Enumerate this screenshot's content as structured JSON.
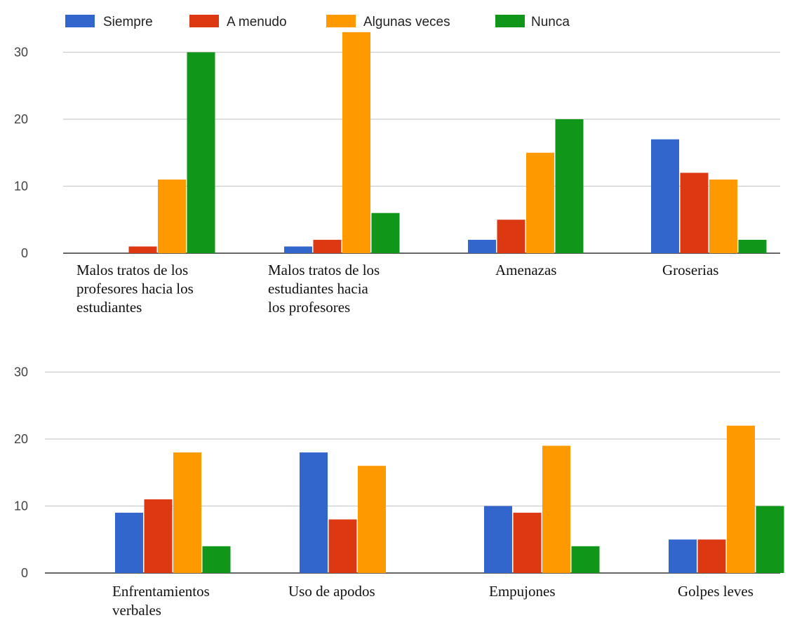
{
  "legend": {
    "items": [
      {
        "label": "Siempre",
        "color": "#3366cc"
      },
      {
        "label": "A menudo",
        "color": "#dc3912"
      },
      {
        "label": "Algunas veces",
        "color": "#ff9900"
      },
      {
        "label": "Nunca",
        "color": "#109618"
      }
    ]
  },
  "chart_data": [
    {
      "type": "bar",
      "legend_position": "top-left",
      "grid": true,
      "ylim": [
        0,
        33
      ],
      "yticks": [
        "0",
        "10",
        "20",
        "30"
      ],
      "categories": [
        "Malos tratos de los profesores hacia los estudiantes",
        "Malos tratos de los estudiantes hacia los profesores",
        "Amenazas",
        "Groserias"
      ],
      "category_lines": [
        [
          "Malos tratos de los",
          "profesores hacia los",
          "estudiantes"
        ],
        [
          "Malos tratos de los",
          "estudiantes hacia",
          "los profesores"
        ],
        [
          "Amenazas"
        ],
        [
          "Groserias"
        ]
      ],
      "series": [
        {
          "name": "Siempre",
          "color": "#3366cc",
          "values": [
            0,
            1,
            2,
            17
          ]
        },
        {
          "name": "A menudo",
          "color": "#dc3912",
          "values": [
            1,
            2,
            5,
            12
          ]
        },
        {
          "name": "Algunas veces",
          "color": "#ff9900",
          "values": [
            11,
            33,
            15,
            11
          ]
        },
        {
          "name": "Nunca",
          "color": "#109618",
          "values": [
            30,
            6,
            20,
            2
          ]
        }
      ]
    },
    {
      "type": "bar",
      "grid": true,
      "ylim": [
        0,
        30
      ],
      "yticks": [
        "0",
        "10",
        "20",
        "30"
      ],
      "categories": [
        "Enfrentamientos verbales",
        "Uso de apodos",
        "Empujones",
        "Golpes leves"
      ],
      "category_lines": [
        [
          "Enfrentamientos",
          "verbales"
        ],
        [
          "Uso de apodos"
        ],
        [
          "Empujones"
        ],
        [
          "Golpes leves"
        ]
      ],
      "series": [
        {
          "name": "Siempre",
          "color": "#3366cc",
          "values": [
            9,
            18,
            10,
            5
          ]
        },
        {
          "name": "A menudo",
          "color": "#dc3912",
          "values": [
            11,
            8,
            9,
            5
          ]
        },
        {
          "name": "Algunas veces",
          "color": "#ff9900",
          "values": [
            18,
            16,
            19,
            22
          ]
        },
        {
          "name": "Nunca",
          "color": "#109618",
          "values": [
            4,
            0,
            4,
            10
          ]
        }
      ]
    }
  ]
}
